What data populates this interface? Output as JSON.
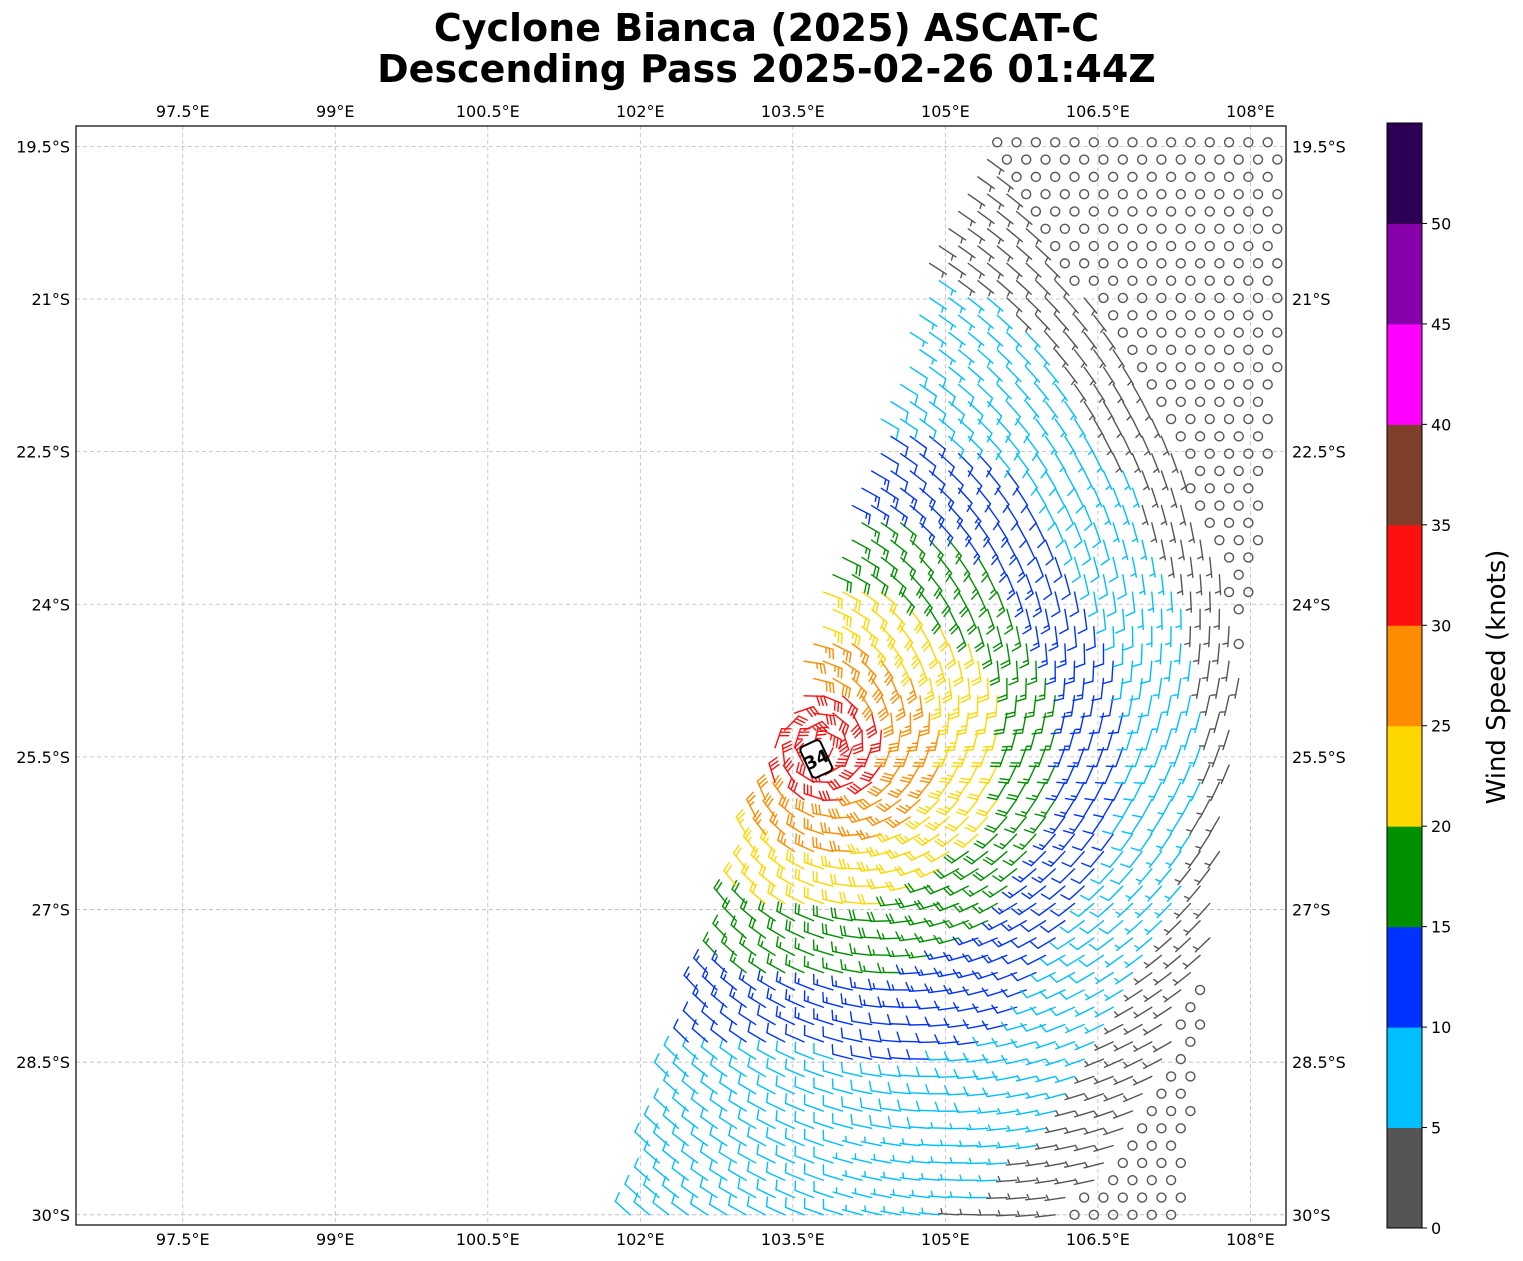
{
  "title_line1": "Cyclone Bianca (2025) ASCAT-C",
  "title_line2": "Descending Pass 2025-02-26 01:44Z",
  "map": {
    "lon_range": [
      96.45,
      108.35
    ],
    "lat_range": [
      -30.1,
      -19.3
    ],
    "lon_ticks": [
      {
        "value": 97.5,
        "label": "97.5°E"
      },
      {
        "value": 99,
        "label": "99°E"
      },
      {
        "value": 100.5,
        "label": "100.5°E"
      },
      {
        "value": 102,
        "label": "102°E"
      },
      {
        "value": 103.5,
        "label": "103.5°E"
      },
      {
        "value": 105,
        "label": "105°E"
      },
      {
        "value": 106.5,
        "label": "106.5°E"
      },
      {
        "value": 108,
        "label": "108°E"
      }
    ],
    "lat_ticks": [
      {
        "value": -19.5,
        "label": "19.5°S"
      },
      {
        "value": -21,
        "label": "21°S"
      },
      {
        "value": -22.5,
        "label": "22.5°S"
      },
      {
        "value": -24,
        "label": "24°S"
      },
      {
        "value": -25.5,
        "label": "25.5°S"
      },
      {
        "value": -27,
        "label": "27°S"
      },
      {
        "value": -28.5,
        "label": "28.5°S"
      },
      {
        "value": -30,
        "label": "30°S"
      }
    ],
    "gridlines": true,
    "wind_field": {
      "swath_top": [
        [
          104.95,
          -20.3
        ],
        [
          105.4,
          -19.3
        ],
        [
          108.35,
          -19.3
        ]
      ],
      "swath_bottom": [
        [
          101.8,
          -30.1
        ],
        [
          107.3,
          -30.1
        ],
        [
          108.35,
          -21.0
        ]
      ],
      "center": [
        103.78,
        -25.4
      ],
      "max_wind_kt": 34,
      "barb_style": "southern-hemisphere wind barbs colored by speed"
    },
    "max_wind_label": "34"
  },
  "colorbar": {
    "label": "Wind Speed (knots)",
    "ticks": [
      "0",
      "5",
      "10",
      "15",
      "20",
      "25",
      "30",
      "35",
      "40",
      "45",
      "50"
    ],
    "colors": [
      "#555555",
      "#00bfff",
      "#0033ff",
      "#009000",
      "#ffd700",
      "#ff8c00",
      "#ff1010",
      "#7f3f2a",
      "#ff00ff",
      "#8800aa",
      "#2e0055"
    ]
  }
}
